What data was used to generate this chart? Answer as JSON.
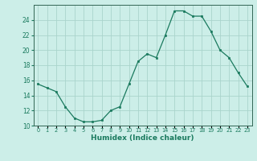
{
  "x": [
    0,
    1,
    2,
    3,
    4,
    5,
    6,
    7,
    8,
    9,
    10,
    11,
    12,
    13,
    14,
    15,
    16,
    17,
    18,
    19,
    20,
    21,
    22,
    23
  ],
  "y": [
    15.5,
    15.0,
    14.5,
    12.5,
    11.0,
    10.5,
    10.5,
    10.7,
    12.0,
    12.5,
    15.5,
    18.5,
    19.5,
    19.0,
    22.0,
    25.2,
    25.2,
    24.5,
    24.5,
    22.5,
    20.0,
    19.0,
    17.0,
    15.2
  ],
  "xlabel": "Humidex (Indice chaleur)",
  "ylim": [
    10,
    26
  ],
  "xlim": [
    -0.5,
    23.5
  ],
  "yticks": [
    10,
    12,
    14,
    16,
    18,
    20,
    22,
    24
  ],
  "xtick_labels": [
    "0",
    "1",
    "2",
    "3",
    "4",
    "5",
    "6",
    "7",
    "8",
    "9",
    "10",
    "11",
    "12",
    "13",
    "14",
    "15",
    "16",
    "17",
    "18",
    "19",
    "20",
    "21",
    "22",
    "23"
  ],
  "line_color": "#1a7a5e",
  "marker_color": "#1a7a5e",
  "bg_color": "#cceee8",
  "grid_color": "#aad4cc",
  "spine_color": "#336655"
}
